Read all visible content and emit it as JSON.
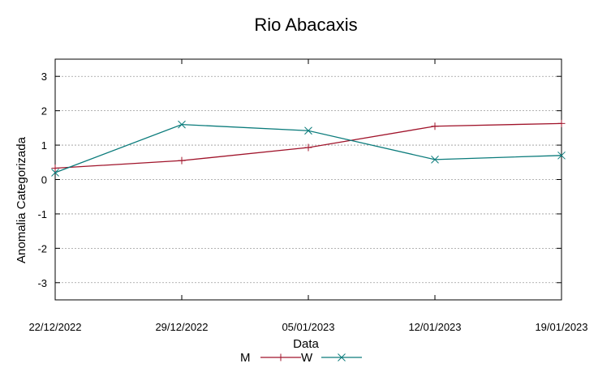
{
  "chart_data": {
    "type": "line",
    "title": "Rio Abacaxis",
    "xlabel": "Data",
    "ylabel": "Anomalia Categorizada",
    "x": [
      "22/12/2022",
      "29/12/2022",
      "05/01/2023",
      "12/01/2023",
      "19/01/2023"
    ],
    "ylim": [
      -3.5,
      3.5
    ],
    "yticks": [
      -3,
      -2,
      -1,
      0,
      1,
      2,
      3
    ],
    "grid": true,
    "legend_position": "bottom-center",
    "series": [
      {
        "name": "M",
        "color": "#a0132a",
        "marker": "plus",
        "values": [
          0.33,
          0.55,
          0.93,
          1.55,
          1.63
        ]
      },
      {
        "name": "W",
        "color": "#0a7b7b",
        "marker": "cross",
        "values": [
          0.2,
          1.6,
          1.42,
          0.58,
          0.7
        ]
      }
    ]
  }
}
